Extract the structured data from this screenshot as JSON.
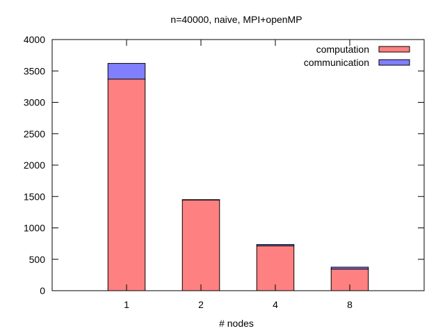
{
  "chart_data": {
    "type": "bar",
    "stacked": true,
    "title": "n=40000, naive, MPI+openMP",
    "xlabel": "# nodes",
    "ylabel": "",
    "ylim": [
      0,
      4000
    ],
    "yticks": [
      0,
      500,
      1000,
      1500,
      2000,
      2500,
      3000,
      3500,
      4000
    ],
    "categories": [
      "1",
      "2",
      "4",
      "8"
    ],
    "series": [
      {
        "name": "computation",
        "values": [
          3370,
          1445,
          715,
          345
        ],
        "color": "#ff8080"
      },
      {
        "name": "communication",
        "values": [
          250,
          5,
          20,
          30
        ],
        "color": "#8080ff"
      }
    ],
    "legend_position": "top-right",
    "grid": false
  }
}
